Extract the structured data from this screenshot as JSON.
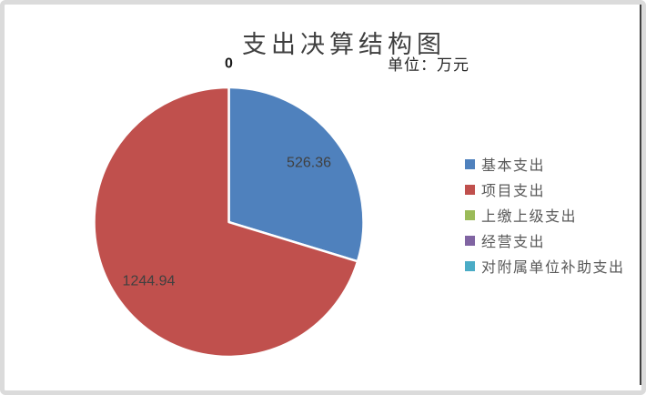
{
  "frame": {
    "background": "#FFFFFF",
    "border_color": "#DBDBDB",
    "right_line_color": "#404040"
  },
  "chart_data": {
    "type": "pie",
    "title": "支出决算结构图",
    "unit_label": "单位：万元",
    "categories": [
      "基本支出",
      "项目支出",
      "上缴上级支出",
      "经营支出",
      "对附属单位补助支出"
    ],
    "values": [
      526.36,
      1244.94,
      0,
      0,
      0
    ],
    "data_labels": [
      "526.36",
      "1244.94",
      "0",
      "0",
      "0"
    ],
    "colors": [
      "#4F81BD",
      "#C0504D",
      "#9BBB59",
      "#8064A2",
      "#4BACC6"
    ],
    "start_angle": "12-oclock-clockwise",
    "legend_position": "right",
    "slice_separator_color": "#FFFFFF",
    "data_label_color": "#404040",
    "zero_label_color": "#1A1A1A",
    "title_color": "#404040",
    "unit_label_color": "#262626",
    "legend_text_color": "#595959"
  }
}
